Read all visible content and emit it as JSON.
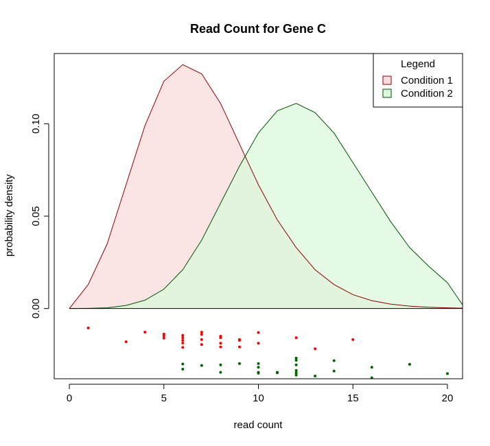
{
  "chart_data": {
    "type": "area",
    "title": "Read Count for Gene C",
    "xlabel": "read count",
    "ylabel": "probability density",
    "xlim": [
      -0.8,
      20.8
    ],
    "ylim": [
      -0.038,
      0.138
    ],
    "x_ticks": [
      0,
      5,
      10,
      15,
      20
    ],
    "x_tick_labels": [
      "0",
      "5",
      "10",
      "15",
      "20"
    ],
    "y_ticks": [
      0.0,
      0.05,
      0.1
    ],
    "y_tick_labels": [
      "0.00",
      "0.05",
      "0.10"
    ],
    "legend": {
      "title": "Legend",
      "placement": "top-right",
      "entries": [
        "Condition 1",
        "Condition 2"
      ]
    },
    "series": [
      {
        "name": "Condition 1",
        "fill": "#f9dddd",
        "stroke": "#8b0000",
        "x": [
          0,
          1,
          2,
          3,
          4,
          5,
          6,
          7,
          8,
          9,
          10,
          11,
          12,
          13,
          14,
          15,
          16,
          17,
          18,
          19,
          20,
          20.8
        ],
        "y": [
          0.0,
          0.013,
          0.035,
          0.067,
          0.099,
          0.123,
          0.132,
          0.127,
          0.111,
          0.089,
          0.067,
          0.048,
          0.033,
          0.021,
          0.013,
          0.0075,
          0.0043,
          0.0024,
          0.0013,
          0.0007,
          0.0004,
          0.0002
        ]
      },
      {
        "name": "Condition 2",
        "fill": "#dcf8dc",
        "stroke": "#005000",
        "x": [
          0,
          1,
          2,
          3,
          4,
          5,
          6,
          7,
          8,
          9,
          10,
          11,
          12,
          13,
          14,
          15,
          16,
          17,
          18,
          19,
          20,
          20.8
        ],
        "y": [
          0.0,
          0.0001,
          0.0004,
          0.0017,
          0.0045,
          0.0105,
          0.021,
          0.037,
          0.057,
          0.077,
          0.095,
          0.107,
          0.111,
          0.106,
          0.095,
          0.079,
          0.063,
          0.047,
          0.033,
          0.023,
          0.014,
          0.002
        ]
      }
    ],
    "points": [
      {
        "name": "Condition 1",
        "color": "#ff0000",
        "x": [
          1,
          3,
          4,
          5,
          5,
          5,
          6,
          6,
          6,
          6,
          6,
          7,
          7,
          7,
          7,
          8,
          8,
          8,
          8,
          9,
          9,
          9,
          10,
          10,
          12,
          13,
          15
        ],
        "y": [
          -0.0105,
          -0.018,
          -0.0128,
          -0.0138,
          -0.0148,
          -0.016,
          -0.0145,
          -0.0158,
          -0.0172,
          -0.0187,
          -0.021,
          -0.0128,
          -0.014,
          -0.0168,
          -0.0195,
          -0.015,
          -0.0158,
          -0.0188,
          -0.0208,
          -0.0168,
          -0.0172,
          -0.0208,
          -0.013,
          -0.0188,
          -0.0158,
          -0.0218,
          -0.0168
        ]
      },
      {
        "name": "Condition 2",
        "color": "#006400",
        "x": [
          6,
          6,
          7,
          8,
          8,
          9,
          10,
          10,
          10,
          10,
          11,
          11,
          12,
          12,
          12,
          12,
          12,
          12,
          13,
          14,
          14,
          15,
          16,
          16,
          18,
          20
        ],
        "y": [
          -0.03,
          -0.0328,
          -0.0308,
          -0.0305,
          -0.0345,
          -0.0298,
          -0.0298,
          -0.0318,
          -0.0345,
          -0.035,
          -0.0345,
          -0.0348,
          -0.0268,
          -0.028,
          -0.0305,
          -0.0335,
          -0.0348,
          -0.036,
          -0.0365,
          -0.0282,
          -0.0338,
          -0.0385,
          -0.0318,
          -0.0375,
          -0.0302,
          -0.0352
        ]
      }
    ],
    "grid": false
  }
}
